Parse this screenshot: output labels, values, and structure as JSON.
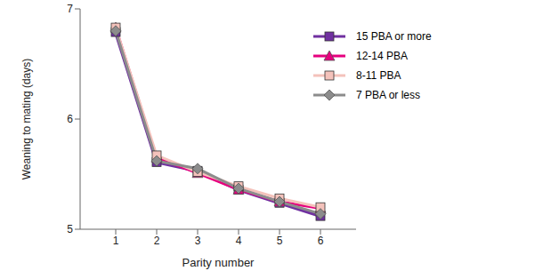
{
  "chart_data": {
    "type": "line",
    "x_label": "Parity number",
    "y_label": "Weaning to mating (days)",
    "categories": [
      "1",
      "2",
      "3",
      "4",
      "5",
      "6"
    ],
    "ylim": [
      5,
      7
    ],
    "yticks": [
      5,
      6,
      7
    ],
    "grid": false,
    "legend": "upper right",
    "series": [
      {
        "name": "15 PBA or more",
        "color": "#7030a0",
        "marker": "square",
        "values": [
          6.79,
          5.61,
          5.53,
          5.36,
          5.24,
          5.12
        ]
      },
      {
        "name": "12-14 PBA",
        "color": "#e6007e",
        "marker": "triangle",
        "values": [
          6.83,
          5.65,
          5.51,
          5.36,
          5.25,
          5.19
        ]
      },
      {
        "name": "8-11 PBA",
        "color": "#f4c2bb",
        "marker": "square",
        "values": [
          6.83,
          5.67,
          5.52,
          5.39,
          5.28,
          5.2
        ]
      },
      {
        "name": "7 PBA or less",
        "color": "#8c8c8c",
        "marker": "diamond",
        "values": [
          6.8,
          5.62,
          5.55,
          5.37,
          5.25,
          5.14
        ]
      }
    ]
  }
}
